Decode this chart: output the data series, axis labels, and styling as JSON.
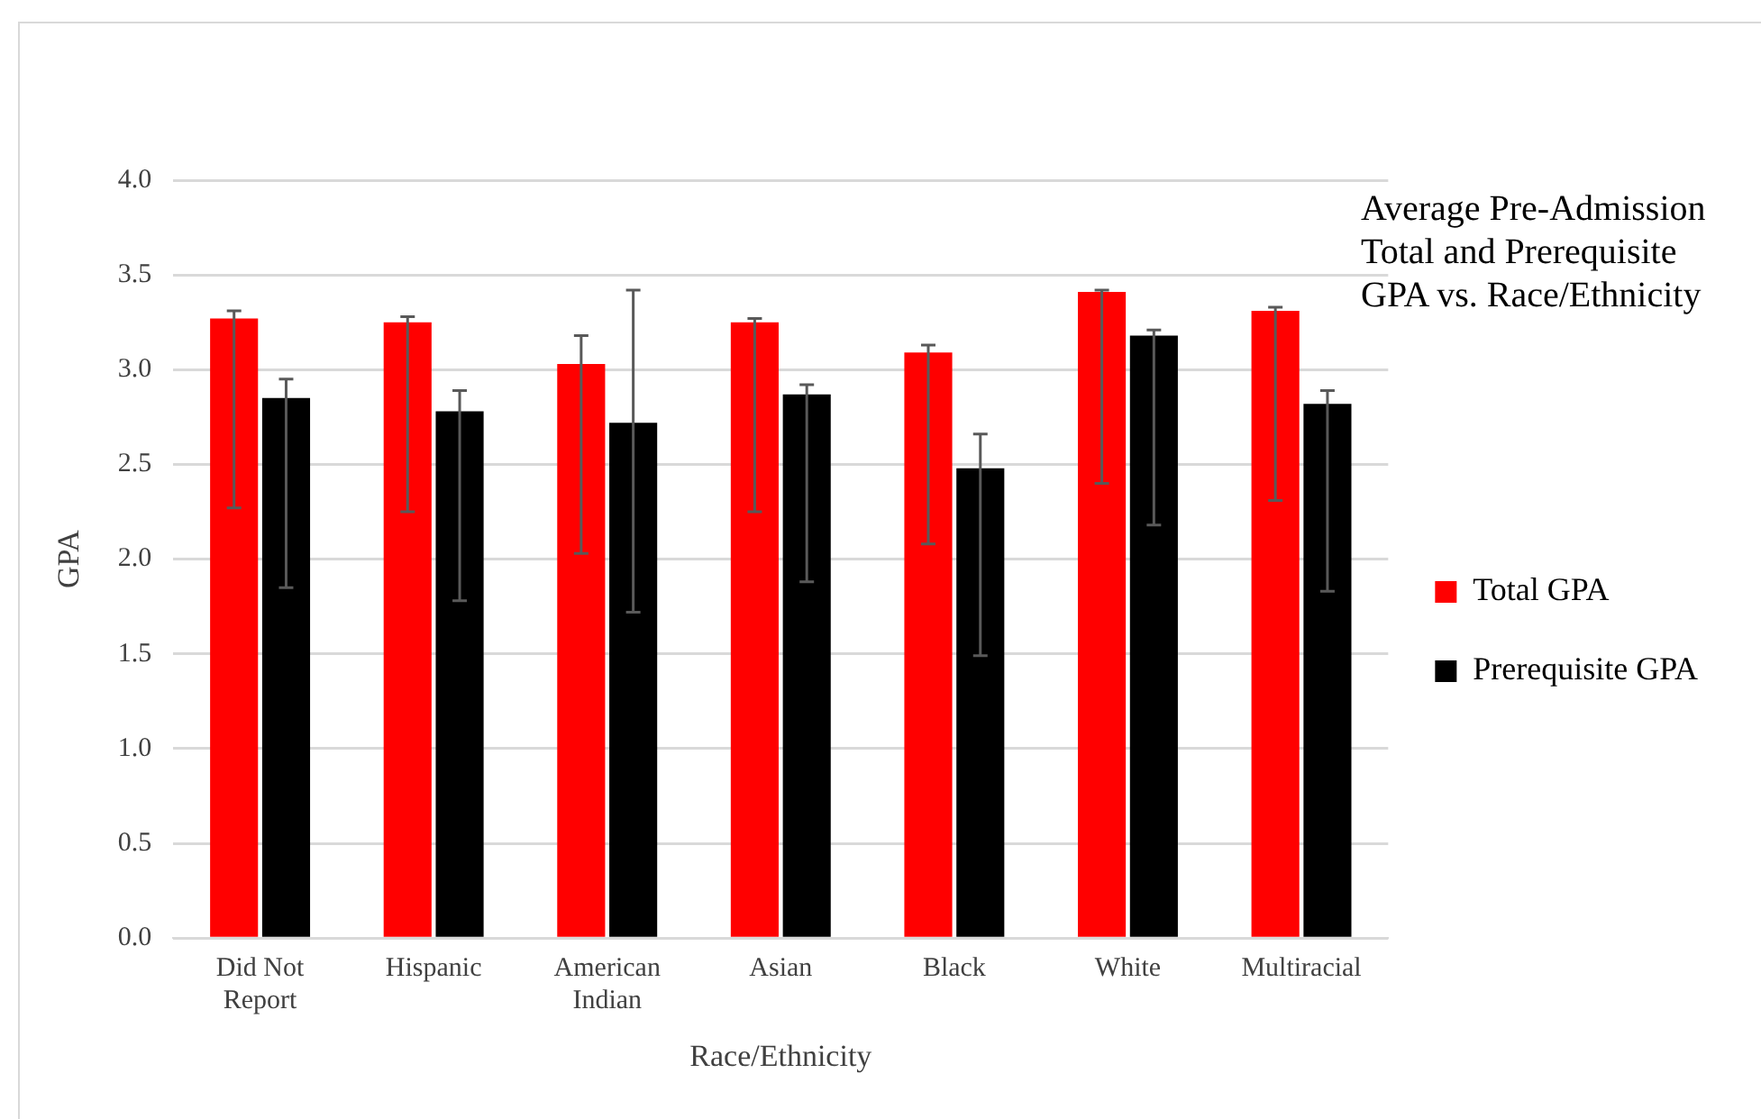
{
  "chart_data": {
    "type": "bar",
    "title": "Average Pre-Admission Total and Prerequisite GPA vs. Race/Ethnicity",
    "xlabel": "Race/Ethnicity",
    "ylabel": "GPA",
    "categories": [
      "Did Not Report",
      "Hispanic",
      "American Indian",
      "Asian",
      "Black",
      "White",
      "Multiracial"
    ],
    "series": [
      {
        "name": "Total GPA",
        "color": "#ff0000",
        "values": [
          3.27,
          3.25,
          3.03,
          3.25,
          3.09,
          3.41,
          3.31
        ],
        "errors": [
          [
            2.27,
            3.31
          ],
          [
            2.25,
            3.28
          ],
          [
            2.03,
            3.18
          ],
          [
            2.25,
            3.27
          ],
          [
            2.08,
            3.13
          ],
          [
            2.4,
            3.42
          ],
          [
            2.31,
            3.33
          ]
        ]
      },
      {
        "name": "Prerequisite GPA",
        "color": "#000000",
        "values": [
          2.85,
          2.78,
          2.72,
          2.87,
          2.48,
          3.18,
          2.82
        ],
        "errors": [
          [
            1.85,
            2.95
          ],
          [
            1.78,
            2.89
          ],
          [
            1.72,
            3.42
          ],
          [
            1.88,
            2.92
          ],
          [
            1.49,
            2.66
          ],
          [
            2.18,
            3.21
          ],
          [
            1.83,
            2.89
          ]
        ]
      }
    ],
    "ylim": [
      0,
      4
    ],
    "yticks": [
      {
        "value": 0,
        "label": "0.0"
      },
      {
        "value": 0.5,
        "label": "0.5"
      },
      {
        "value": 1,
        "label": "1.0"
      },
      {
        "value": 1.5,
        "label": "1.5"
      },
      {
        "value": 2,
        "label": "2.0"
      },
      {
        "value": 2.5,
        "label": "2.5"
      },
      {
        "value": 3,
        "label": "3.0"
      },
      {
        "value": 3.5,
        "label": "3.5"
      },
      {
        "value": 4,
        "label": "4.0"
      }
    ],
    "grid": "y",
    "legend": "right"
  }
}
